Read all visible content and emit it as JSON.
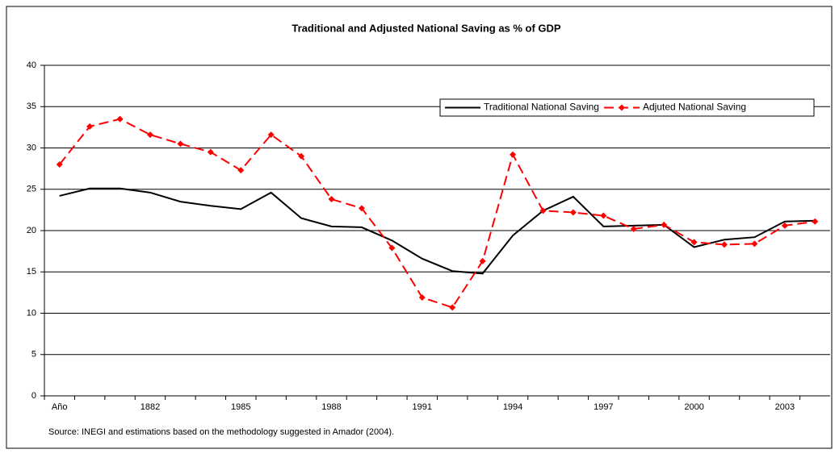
{
  "chart_data": {
    "type": "line",
    "title": "Traditional and Adjusted National Saving as % of GDP",
    "source": "Source: INEGI  and estimations based on the methodology suggested in Amador (2004).",
    "categories": [
      "Año",
      null,
      null,
      "1882",
      null,
      null,
      "1985",
      null,
      null,
      "1988",
      null,
      null,
      "1991",
      null,
      null,
      "1994",
      null,
      null,
      "1997",
      null,
      null,
      "2000",
      null,
      null,
      "2003",
      null
    ],
    "series": [
      {
        "name": "Traditional National Saving",
        "color": "#000000",
        "dash": false,
        "markers": false,
        "values": [
          24.2,
          25.1,
          25.1,
          24.6,
          23.5,
          23.0,
          22.6,
          24.6,
          21.5,
          20.5,
          20.4,
          18.8,
          16.6,
          15.1,
          14.8,
          19.4,
          22.4,
          24.1,
          20.5,
          20.6,
          20.7,
          18.0,
          18.9,
          19.2,
          21.1,
          21.2
        ]
      },
      {
        "name": "Adjuted National Saving",
        "color": "#ff0000",
        "dash": true,
        "markers": true,
        "values": [
          28.0,
          32.6,
          33.5,
          31.6,
          30.5,
          29.5,
          27.3,
          31.6,
          29.0,
          23.8,
          22.7,
          17.9,
          11.9,
          10.7,
          16.3,
          29.2,
          22.4,
          22.2,
          21.8,
          20.2,
          20.7,
          18.6,
          18.3,
          18.4,
          20.6,
          21.1
        ]
      }
    ],
    "ylim": [
      0,
      40
    ],
    "yticks": [
      0,
      5,
      10,
      15,
      20,
      25,
      30,
      35,
      40
    ],
    "grid": true,
    "legend": "top-right"
  }
}
